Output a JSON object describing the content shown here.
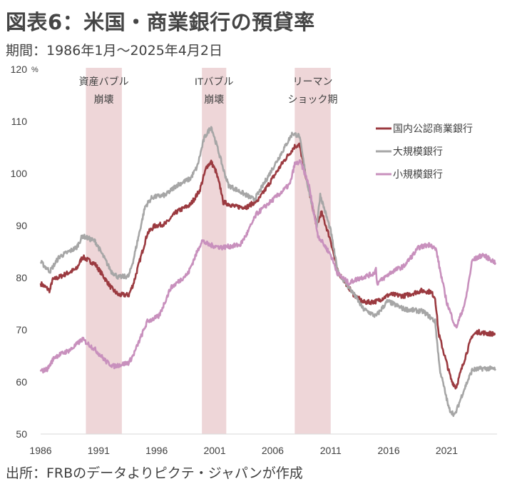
{
  "title": "図表6：米国・商業銀行の預貸率",
  "subtitle": "期間：1986年1月～2025年4月2日",
  "source": "出所：FRBのデータよりピクテ・ジャパンが作成",
  "chart_data": {
    "type": "line",
    "title": "図表6：米国・商業銀行の預貸率",
    "ylabel": "%",
    "ylim": [
      50,
      120
    ],
    "yticks": [
      "50",
      "60",
      "70",
      "80",
      "90",
      "100",
      "110",
      "120"
    ],
    "xlim": [
      1986,
      2025.3
    ],
    "xticks": [
      "1986",
      "1991",
      "1996",
      "2001",
      "2006",
      "2011",
      "2016",
      "2021"
    ],
    "legend_position": "top-right",
    "grid": false,
    "shaded_periods": [
      {
        "start": 1989.9,
        "end": 1993.0,
        "label_lines": [
          "資産バブル",
          "崩壊"
        ]
      },
      {
        "start": 1999.9,
        "end": 2002.0,
        "label_lines": [
          "ITバブル",
          "崩壊"
        ]
      },
      {
        "start": 2007.9,
        "end": 2011.0,
        "label_lines": [
          "リーマン",
          "ショック期"
        ]
      }
    ],
    "series": [
      {
        "name": "国内公認商業銀行",
        "color": "#9b3a40",
        "x": [
          1986.0,
          1986.8,
          1987.0,
          1989.1,
          1989.6,
          1990.7,
          1992.1,
          1992.7,
          1993.6,
          1994.0,
          1995.2,
          1995.8,
          1996.8,
          1997.7,
          1998.9,
          1999.7,
          2000.3,
          2000.7,
          2001.1,
          2001.6,
          2001.7,
          2002.4,
          2002.8,
          2003.8,
          2004.8,
          2006.9,
          2007.9,
          2008.3,
          2008.9,
          2009.8,
          2010.2,
          2011.0,
          2011.6,
          2013.0,
          2013.8,
          2014.3,
          2015.0,
          2016.1,
          2017.3,
          2018.8,
          2019.6,
          2020.0,
          2020.3,
          2021.4,
          2021.8,
          2022.6,
          2023.2,
          2023.7,
          2024.5,
          2025.2
        ],
        "values": [
          78.9,
          77.5,
          79.5,
          81.7,
          84.0,
          82.6,
          78.0,
          76.7,
          76.7,
          78.9,
          88.5,
          89.9,
          90.4,
          92.6,
          94.0,
          96.7,
          101.3,
          102.2,
          100.4,
          96.3,
          94.5,
          94.0,
          93.6,
          93.6,
          95.0,
          102.2,
          105.2,
          105.5,
          99.0,
          89.9,
          92.6,
          87.1,
          81.2,
          76.7,
          75.3,
          75.3,
          75.5,
          76.8,
          76.5,
          77.5,
          77.3,
          76.2,
          69.3,
          60.3,
          58.9,
          64.8,
          68.9,
          69.6,
          69.3,
          69.2
        ]
      },
      {
        "name": "大規模銀行",
        "color": "#a6a6a6",
        "x": [
          1986.0,
          1986.8,
          1987.6,
          1989.1,
          1989.6,
          1990.7,
          1992.1,
          1992.7,
          1993.6,
          1994.0,
          1995.0,
          1995.6,
          1996.8,
          1997.7,
          1998.9,
          1999.5,
          2000.1,
          2000.7,
          2001.3,
          2001.8,
          2002.2,
          2002.8,
          2004.4,
          2004.8,
          2006.9,
          2007.7,
          2008.3,
          2008.9,
          2009.8,
          2010.1,
          2011.0,
          2011.6,
          2012.6,
          2013.2,
          2013.8,
          2014.9,
          2015.9,
          2017.3,
          2019.0,
          2020.0,
          2020.4,
          2021.2,
          2021.7,
          2022.4,
          2023.2,
          2024.2,
          2025.2
        ],
        "values": [
          83.0,
          81.2,
          84.0,
          85.8,
          88.0,
          87.0,
          81.2,
          80.1,
          80.3,
          83.5,
          93.6,
          95.4,
          95.9,
          97.7,
          99.0,
          101.3,
          106.8,
          109.0,
          104.5,
          100.4,
          97.7,
          97.0,
          95.0,
          96.3,
          104.5,
          107.7,
          107.2,
          99.0,
          89.9,
          95.9,
          89.0,
          81.2,
          78.0,
          76.2,
          74.0,
          72.6,
          75.5,
          74.0,
          73.5,
          71.6,
          62.5,
          54.8,
          53.6,
          58.0,
          62.3,
          62.6,
          62.5
        ]
      },
      {
        "name": "小規模銀行",
        "color": "#c890bd",
        "x": [
          1986.0,
          1986.6,
          1987.2,
          1988.6,
          1989.6,
          1990.7,
          1991.7,
          1992.3,
          1993.6,
          1994.0,
          1995.2,
          1996.2,
          1997.2,
          1998.7,
          1999.9,
          2000.5,
          2001.6,
          2003.2,
          2003.8,
          2004.6,
          2006.9,
          2007.5,
          2007.9,
          2008.4,
          2009.1,
          2009.9,
          2011.0,
          2011.6,
          2012.6,
          2013.0,
          2014.7,
          2014.9,
          2015.0,
          2016.3,
          2017.3,
          2018.6,
          2019.6,
          2020.1,
          2020.4,
          2021.0,
          2021.8,
          2022.6,
          2023.2,
          2024.1,
          2025.2
        ],
        "values": [
          62.0,
          62.5,
          64.8,
          66.2,
          68.2,
          66.2,
          63.8,
          63.0,
          63.7,
          65.2,
          71.6,
          72.6,
          78.0,
          80.8,
          87.1,
          86.3,
          85.8,
          86.3,
          88.5,
          92.2,
          96.7,
          98.0,
          101.8,
          102.2,
          98.0,
          88.1,
          84.4,
          80.8,
          78.9,
          79.5,
          80.8,
          81.7,
          78.9,
          81.2,
          82.2,
          85.8,
          86.4,
          85.3,
          81.7,
          75.3,
          70.3,
          75.3,
          83.3,
          84.4,
          82.9
        ]
      }
    ]
  }
}
